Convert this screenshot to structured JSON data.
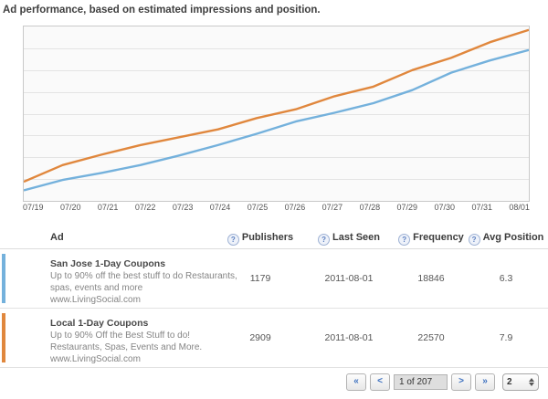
{
  "page": {
    "title": "Ad performance, based on estimated impressions and position."
  },
  "chart_data": {
    "type": "line",
    "title": "Ad performance, based on estimated impressions and position.",
    "categories": [
      "07/19",
      "07/20",
      "07/21",
      "07/22",
      "07/23",
      "07/24",
      "07/25",
      "07/26",
      "07/27",
      "07/28",
      "07/29",
      "07/30",
      "07/31",
      "08/01"
    ],
    "series": [
      {
        "name": "orange-series",
        "color": "#E0873D",
        "values": [
          11,
          20.5,
          26.5,
          32,
          36.5,
          41,
          47.5,
          52.5,
          60,
          65.5,
          75,
          82,
          91,
          98
        ]
      },
      {
        "name": "blue-series",
        "color": "#74B1DC",
        "values": [
          6,
          12,
          16,
          20.5,
          26,
          32,
          38.5,
          45.5,
          50.5,
          56,
          63.5,
          73.5,
          80.5,
          86.5
        ]
      }
    ],
    "xlabel": "",
    "ylabel": "",
    "ylim": [
      0,
      100
    ],
    "y_units": "relative (no y-axis tick labels shown)",
    "grid": true,
    "gridline_count": 7,
    "legend": "none",
    "markers": false
  },
  "icons": {
    "info": "?"
  },
  "table": {
    "columns": [
      {
        "label": "Ad"
      },
      {
        "label": "Publishers"
      },
      {
        "label": "Last Seen"
      },
      {
        "label": "Frequency"
      },
      {
        "label": "Avg Position"
      }
    ],
    "rows": [
      {
        "accent_color": "#74B1DC",
        "title": "San Jose 1-Day Coupons",
        "description": "Up to 90% off the best stuff to do Restaurants, spas, events and more",
        "url": "www.LivingSocial.com",
        "publishers": "1179",
        "last_seen": "2011-08-01",
        "frequency": "18846",
        "avg_position": "6.3"
      },
      {
        "accent_color": "#E0873D",
        "title": "Local 1-Day Coupons",
        "description": "Up to 90% Off the Best Stuff to do! Restaurants, Spas, Events and More.",
        "url": "www.LivingSocial.com",
        "publishers": "2909",
        "last_seen": "2011-08-01",
        "frequency": "22570",
        "avg_position": "7.9"
      }
    ]
  },
  "pagination": {
    "first": "«",
    "prev": "<",
    "page_status": "1 of 207",
    "next": ">",
    "last": "»",
    "page_size": "2"
  }
}
